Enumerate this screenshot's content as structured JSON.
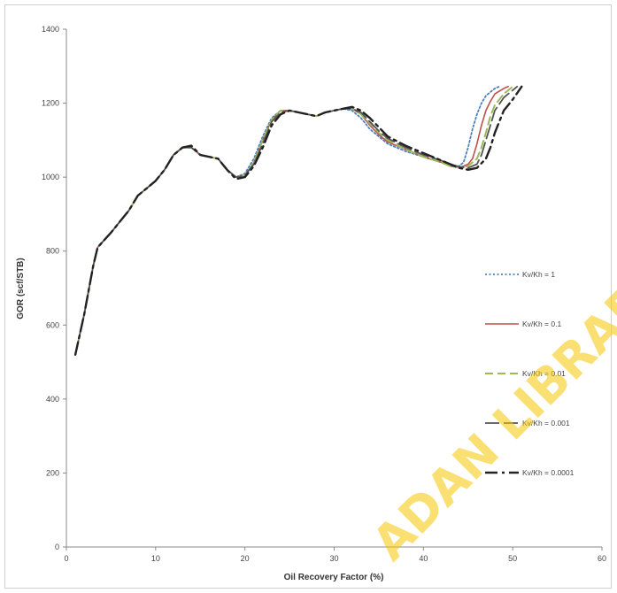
{
  "chart_data": {
    "type": "line",
    "title": "",
    "xlabel": "Oil Recovery Factor (%)",
    "ylabel": "GOR (scf/STB)",
    "xlim": [
      0,
      60
    ],
    "ylim": [
      0,
      1400
    ],
    "xticks": [
      0,
      10,
      20,
      30,
      40,
      50,
      60
    ],
    "yticks": [
      0,
      200,
      400,
      600,
      800,
      1000,
      1200,
      1400
    ],
    "grid": false,
    "legend_position": "right",
    "series": [
      {
        "name": "Kv/Kh = 1",
        "color": "#4f81bd",
        "dash": "dotted",
        "points": [
          [
            1,
            520
          ],
          [
            2,
            630
          ],
          [
            3,
            760
          ],
          [
            3.5,
            810
          ],
          [
            5,
            850
          ],
          [
            6,
            880
          ],
          [
            7,
            910
          ],
          [
            8,
            950
          ],
          [
            9,
            970
          ],
          [
            10,
            990
          ],
          [
            11,
            1020
          ],
          [
            12,
            1060
          ],
          [
            13,
            1080
          ],
          [
            14,
            1080
          ],
          [
            15,
            1060
          ],
          [
            16,
            1055
          ],
          [
            17,
            1050
          ],
          [
            18,
            1020
          ],
          [
            19,
            1000
          ],
          [
            20,
            1010
          ],
          [
            21,
            1050
          ],
          [
            22,
            1110
          ],
          [
            23,
            1160
          ],
          [
            24,
            1180
          ],
          [
            25,
            1180
          ],
          [
            26,
            1175
          ],
          [
            27,
            1170
          ],
          [
            28,
            1165
          ],
          [
            29,
            1175
          ],
          [
            30,
            1180
          ],
          [
            31,
            1185
          ],
          [
            32,
            1180
          ],
          [
            33,
            1160
          ],
          [
            34,
            1130
          ],
          [
            35,
            1110
          ],
          [
            36,
            1090
          ],
          [
            38,
            1070
          ],
          [
            40,
            1055
          ],
          [
            42,
            1040
          ],
          [
            43,
            1030
          ],
          [
            44,
            1030
          ],
          [
            44.5,
            1040
          ],
          [
            45,
            1080
          ],
          [
            45.5,
            1130
          ],
          [
            46,
            1170
          ],
          [
            46.5,
            1200
          ],
          [
            47,
            1220
          ],
          [
            47.5,
            1230
          ],
          [
            48,
            1240
          ],
          [
            48.5,
            1245
          ]
        ]
      },
      {
        "name": "Kv/Kh = 0.1",
        "color": "#c0504d",
        "dash": "solid",
        "points": [
          [
            1,
            520
          ],
          [
            2,
            630
          ],
          [
            3,
            760
          ],
          [
            3.5,
            810
          ],
          [
            5,
            850
          ],
          [
            6,
            880
          ],
          [
            7,
            910
          ],
          [
            8,
            950
          ],
          [
            9,
            970
          ],
          [
            10,
            990
          ],
          [
            11,
            1020
          ],
          [
            12,
            1060
          ],
          [
            13,
            1080
          ],
          [
            14,
            1080
          ],
          [
            15,
            1060
          ],
          [
            16,
            1055
          ],
          [
            17,
            1050
          ],
          [
            18,
            1020
          ],
          [
            19,
            1000
          ],
          [
            20,
            1005
          ],
          [
            21,
            1040
          ],
          [
            22,
            1100
          ],
          [
            23,
            1155
          ],
          [
            24,
            1180
          ],
          [
            25,
            1180
          ],
          [
            26,
            1175
          ],
          [
            27,
            1170
          ],
          [
            28,
            1165
          ],
          [
            29,
            1175
          ],
          [
            30,
            1180
          ],
          [
            31,
            1185
          ],
          [
            32,
            1185
          ],
          [
            33,
            1170
          ],
          [
            34,
            1140
          ],
          [
            35,
            1115
          ],
          [
            36,
            1095
          ],
          [
            38,
            1075
          ],
          [
            40,
            1055
          ],
          [
            42,
            1040
          ],
          [
            43,
            1030
          ],
          [
            44,
            1025
          ],
          [
            45,
            1035
          ],
          [
            45.5,
            1050
          ],
          [
            46,
            1090
          ],
          [
            46.5,
            1140
          ],
          [
            47,
            1180
          ],
          [
            47.5,
            1205
          ],
          [
            48,
            1225
          ],
          [
            49,
            1240
          ],
          [
            49.5,
            1245
          ]
        ]
      },
      {
        "name": "Kv/Kh = 0.01",
        "color": "#9bbb59",
        "dash": "dashed",
        "points": [
          [
            1,
            520
          ],
          [
            2,
            630
          ],
          [
            3,
            760
          ],
          [
            3.5,
            810
          ],
          [
            5,
            850
          ],
          [
            6,
            880
          ],
          [
            7,
            910
          ],
          [
            8,
            950
          ],
          [
            9,
            970
          ],
          [
            10,
            990
          ],
          [
            11,
            1020
          ],
          [
            12,
            1060
          ],
          [
            13,
            1080
          ],
          [
            14,
            1080
          ],
          [
            15,
            1060
          ],
          [
            16,
            1055
          ],
          [
            17,
            1050
          ],
          [
            18,
            1020
          ],
          [
            19,
            1000
          ],
          [
            20,
            1005
          ],
          [
            21,
            1040
          ],
          [
            22,
            1100
          ],
          [
            23,
            1155
          ],
          [
            24,
            1180
          ],
          [
            25,
            1180
          ],
          [
            26,
            1175
          ],
          [
            27,
            1170
          ],
          [
            28,
            1165
          ],
          [
            29,
            1175
          ],
          [
            30,
            1180
          ],
          [
            31,
            1185
          ],
          [
            32,
            1185
          ],
          [
            33,
            1170
          ],
          [
            34,
            1145
          ],
          [
            35,
            1120
          ],
          [
            36,
            1100
          ],
          [
            38,
            1075
          ],
          [
            40,
            1055
          ],
          [
            42,
            1040
          ],
          [
            43,
            1030
          ],
          [
            44,
            1025
          ],
          [
            45,
            1030
          ],
          [
            46,
            1050
          ],
          [
            46.5,
            1080
          ],
          [
            47,
            1120
          ],
          [
            47.5,
            1165
          ],
          [
            48,
            1195
          ],
          [
            49,
            1225
          ],
          [
            50,
            1245
          ]
        ]
      },
      {
        "name": "Kv/Kh = 0.001",
        "color": "#555555",
        "dash": "longdash",
        "points": [
          [
            1,
            520
          ],
          [
            2,
            630
          ],
          [
            3,
            760
          ],
          [
            3.5,
            810
          ],
          [
            5,
            850
          ],
          [
            6,
            880
          ],
          [
            7,
            910
          ],
          [
            8,
            950
          ],
          [
            9,
            970
          ],
          [
            10,
            990
          ],
          [
            11,
            1020
          ],
          [
            12,
            1060
          ],
          [
            13,
            1080
          ],
          [
            14,
            1080
          ],
          [
            15,
            1060
          ],
          [
            16,
            1055
          ],
          [
            17,
            1050
          ],
          [
            18,
            1020
          ],
          [
            19,
            1000
          ],
          [
            20,
            1005
          ],
          [
            21,
            1035
          ],
          [
            22,
            1090
          ],
          [
            23,
            1150
          ],
          [
            24,
            1175
          ],
          [
            25,
            1180
          ],
          [
            26,
            1175
          ],
          [
            27,
            1170
          ],
          [
            28,
            1165
          ],
          [
            29,
            1175
          ],
          [
            30,
            1180
          ],
          [
            31,
            1185
          ],
          [
            32,
            1185
          ],
          [
            33,
            1175
          ],
          [
            34,
            1150
          ],
          [
            35,
            1125
          ],
          [
            36,
            1105
          ],
          [
            38,
            1080
          ],
          [
            40,
            1060
          ],
          [
            42,
            1045
          ],
          [
            43,
            1035
          ],
          [
            44,
            1028
          ],
          [
            45,
            1025
          ],
          [
            46,
            1035
          ],
          [
            46.5,
            1060
          ],
          [
            47,
            1100
          ],
          [
            47.5,
            1140
          ],
          [
            48,
            1180
          ],
          [
            49,
            1215
          ],
          [
            50,
            1235
          ],
          [
            50.5,
            1245
          ]
        ]
      },
      {
        "name": "Kv/Kh = 0.0001",
        "color": "#222222",
        "dash": "dashdot",
        "points": [
          [
            1,
            520
          ],
          [
            2,
            630
          ],
          [
            3,
            760
          ],
          [
            3.5,
            810
          ],
          [
            5,
            850
          ],
          [
            6,
            880
          ],
          [
            7,
            910
          ],
          [
            8,
            950
          ],
          [
            9,
            970
          ],
          [
            10,
            990
          ],
          [
            11,
            1020
          ],
          [
            12,
            1060
          ],
          [
            13,
            1080
          ],
          [
            14,
            1085
          ],
          [
            15,
            1060
          ],
          [
            16,
            1055
          ],
          [
            17,
            1050
          ],
          [
            18,
            1020
          ],
          [
            19,
            995
          ],
          [
            20,
            1000
          ],
          [
            21,
            1030
          ],
          [
            22,
            1080
          ],
          [
            23,
            1140
          ],
          [
            24,
            1170
          ],
          [
            25,
            1180
          ],
          [
            26,
            1175
          ],
          [
            27,
            1170
          ],
          [
            28,
            1165
          ],
          [
            29,
            1175
          ],
          [
            30,
            1180
          ],
          [
            31,
            1185
          ],
          [
            32,
            1190
          ],
          [
            33,
            1180
          ],
          [
            34,
            1160
          ],
          [
            35,
            1135
          ],
          [
            36,
            1110
          ],
          [
            38,
            1085
          ],
          [
            40,
            1065
          ],
          [
            42,
            1045
          ],
          [
            43,
            1035
          ],
          [
            44,
            1025
          ],
          [
            45,
            1020
          ],
          [
            46,
            1025
          ],
          [
            47,
            1050
          ],
          [
            47.5,
            1080
          ],
          [
            48,
            1120
          ],
          [
            48.5,
            1150
          ],
          [
            49,
            1180
          ],
          [
            50,
            1210
          ],
          [
            51,
            1245
          ]
        ]
      }
    ]
  },
  "watermark": "ADAN LIBRAR"
}
